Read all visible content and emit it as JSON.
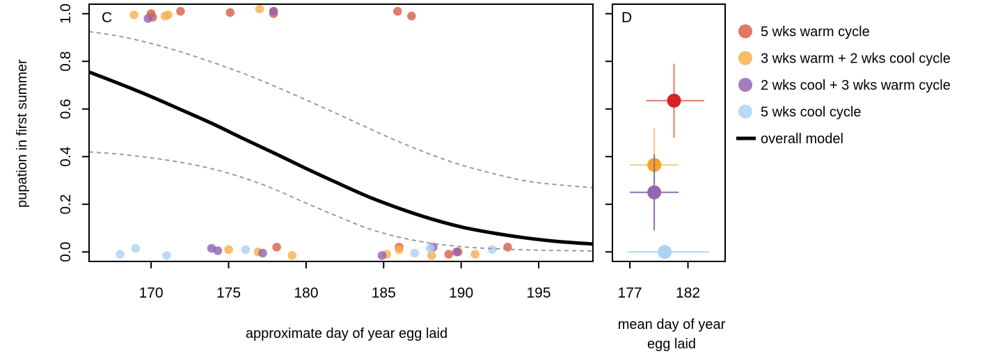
{
  "chart_data": [
    {
      "type": "scatter",
      "panel_label": "C",
      "xlabel": "approximate day of year egg laid",
      "ylabel": "pupation in first summer",
      "xlim": [
        166,
        198.5
      ],
      "ylim": [
        -0.04,
        1.04
      ],
      "x_ticks": [
        "170",
        "175",
        "180",
        "185",
        "190",
        "195"
      ],
      "y_ticks": [
        "0.0",
        "0.2",
        "0.4",
        "0.6",
        "0.8",
        "1.0"
      ],
      "grid": false,
      "series": [
        {
          "name": "5 wks warm cycle",
          "color": "#D9604A",
          "points": [
            [
              170,
              1.0
            ],
            [
              170.1,
              0.985
            ],
            [
              171.9,
              1.01
            ],
            [
              175.1,
              1.005
            ],
            [
              177.9,
              1.01
            ],
            [
              177.9,
              1.0
            ],
            [
              185.9,
              1.01
            ],
            [
              186.8,
              0.99
            ],
            [
              178.1,
              0.02
            ],
            [
              186.0,
              0.02
            ],
            [
              189.2,
              -0.01
            ],
            [
              189.8,
              0.0
            ],
            [
              193.0,
              0.02
            ]
          ]
        },
        {
          "name": "3 wks warm + 2 wks cool cycle",
          "color": "#F8B04E",
          "points": [
            [
              168.9,
              0.995
            ],
            [
              170.9,
              0.99
            ],
            [
              171.1,
              0.995
            ],
            [
              177.0,
              1.02
            ],
            [
              175.0,
              0.01
            ],
            [
              176.9,
              0.0
            ],
            [
              179.1,
              -0.015
            ],
            [
              185.2,
              -0.01
            ],
            [
              186.0,
              0.01
            ],
            [
              188.1,
              -0.015
            ],
            [
              190.9,
              -0.01
            ]
          ]
        },
        {
          "name": "2 wks cool + 3 wks warm cycle",
          "color": "#9467B0",
          "points": [
            [
              169.8,
              0.98
            ],
            [
              177.9,
              1.01
            ],
            [
              173.9,
              0.015
            ],
            [
              174.3,
              0.005
            ],
            [
              177.2,
              -0.005
            ],
            [
              184.9,
              -0.015
            ],
            [
              188.2,
              0.02
            ],
            [
              189.7,
              0.0
            ]
          ]
        },
        {
          "name": "5 wks cool cycle",
          "color": "#AFD2F1",
          "points": [
            [
              168.0,
              -0.01
            ],
            [
              169.0,
              0.015
            ],
            [
              171.0,
              -0.015
            ],
            [
              176.1,
              0.01
            ],
            [
              187.0,
              -0.005
            ],
            [
              188.0,
              0.015
            ],
            [
              192.0,
              0.01
            ]
          ]
        }
      ],
      "model": {
        "name": "overall model",
        "color": "#000000",
        "x": [
          166,
          168,
          170,
          172,
          174,
          176,
          178,
          180,
          182,
          184,
          186,
          188,
          190,
          192,
          194,
          196,
          198.5
        ],
        "fit": [
          0.755,
          0.705,
          0.652,
          0.595,
          0.537,
          0.474,
          0.413,
          0.35,
          0.29,
          0.232,
          0.183,
          0.14,
          0.105,
          0.08,
          0.06,
          0.045,
          0.033
        ],
        "lower": [
          0.42,
          0.41,
          0.395,
          0.375,
          0.348,
          0.31,
          0.262,
          0.205,
          0.15,
          0.098,
          0.062,
          0.037,
          0.022,
          0.014,
          0.009,
          0.006,
          0.004
        ],
        "upper": [
          0.925,
          0.905,
          0.875,
          0.838,
          0.795,
          0.748,
          0.695,
          0.638,
          0.58,
          0.52,
          0.462,
          0.41,
          0.365,
          0.33,
          0.3,
          0.283,
          0.27
        ]
      }
    },
    {
      "type": "scatter",
      "panel_label": "D",
      "xlabel": "mean day of year\negg laid",
      "xlim": [
        175.5,
        185.2
      ],
      "ylim": [
        -0.04,
        1.04
      ],
      "x_ticks": [
        "177",
        "182"
      ],
      "grid": false,
      "points": [
        {
          "name": "5 wks warm cycle",
          "color": "#D42424",
          "bar_color": "#E07A63",
          "x": 180.8,
          "y": 0.635,
          "x_err": [
            178.4,
            183.4
          ],
          "y_err": [
            0.48,
            0.79
          ]
        },
        {
          "name": "3 wks warm + 2 wks cool cycle",
          "color": "#F7A51E",
          "bar_color": "#F9C982",
          "x": 179.1,
          "y": 0.365,
          "x_err": [
            177.0,
            181.2
          ],
          "y_err": [
            0.21,
            0.52
          ]
        },
        {
          "name": "2 wks cool + 3 wks warm cycle",
          "color": "#9467B0",
          "bar_color": "#9467B0",
          "x": 179.1,
          "y": 0.25,
          "x_err": [
            177.0,
            181.2
          ],
          "y_err": [
            0.09,
            0.41
          ]
        },
        {
          "name": "5 wks cool cycle",
          "color": "#AFD2F1",
          "bar_color": "#AFD2F1",
          "x": 180.0,
          "y": 0.0,
          "x_err": [
            176.8,
            183.8
          ],
          "y_err": [
            0.0,
            0.0
          ]
        }
      ]
    }
  ],
  "legend": {
    "placement": "right",
    "items": [
      {
        "label": "5 wks warm cycle",
        "color": "#D9604A",
        "symbol": "dot"
      },
      {
        "label": "3 wks warm + 2 wks cool cycle",
        "color": "#F8B04E",
        "symbol": "dot"
      },
      {
        "label": "2 wks cool + 3 wks warm cycle",
        "color": "#9467B0",
        "symbol": "dot"
      },
      {
        "label": "5 wks cool cycle",
        "color": "#AFD2F1",
        "symbol": "dot"
      },
      {
        "label": "overall model",
        "color": "#000000",
        "symbol": "line"
      }
    ]
  }
}
